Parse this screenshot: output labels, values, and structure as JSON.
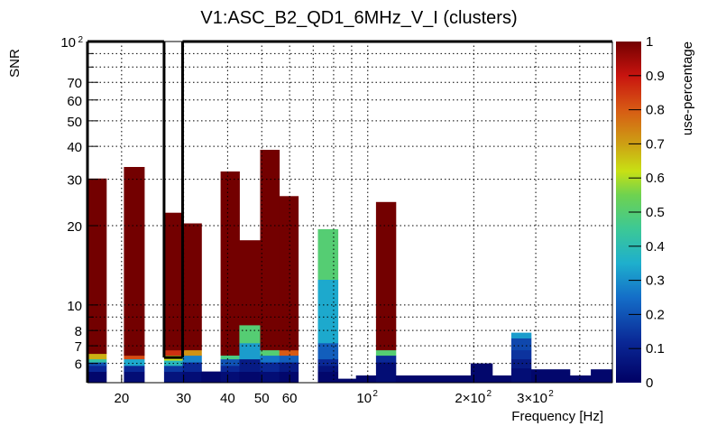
{
  "chart_data": {
    "type": "heatmap",
    "title": "V1:ASC_B2_QD1_6MHz_V_I (clusters)",
    "xlabel": "Frequency [Hz]",
    "ylabel": "SNR",
    "zlabel": "use-percentage",
    "xscale": "log",
    "yscale": "log",
    "xlim": [
      16.0,
      495.0
    ],
    "ylim": [
      5.07,
      100
    ],
    "zlim": [
      0,
      1
    ],
    "grid": true,
    "x_ticks": [
      {
        "value": 20,
        "label": "20"
      },
      {
        "value": 30,
        "label": "30"
      },
      {
        "value": 40,
        "label": "40"
      },
      {
        "value": 50,
        "label": "50"
      },
      {
        "value": 60,
        "label": "60"
      },
      {
        "value": 100,
        "label": "10",
        "sup": "2"
      },
      {
        "value": 200,
        "label": "2×10",
        "sup": "2"
      },
      {
        "value": 300,
        "label": "3×10",
        "sup": "2"
      }
    ],
    "x_minor_grid": [
      70,
      80,
      90,
      400
    ],
    "y_ticks": [
      {
        "value": 6,
        "label": "6"
      },
      {
        "value": 7,
        "label": "7"
      },
      {
        "value": 8,
        "label": "8"
      },
      {
        "value": 10,
        "label": "10"
      },
      {
        "value": 20,
        "label": "20"
      },
      {
        "value": 30,
        "label": "30"
      },
      {
        "value": 40,
        "label": "40"
      },
      {
        "value": 50,
        "label": "50"
      },
      {
        "value": 60,
        "label": "60"
      },
      {
        "value": 70,
        "label": "70"
      },
      {
        "value": 100,
        "label": "10",
        "sup": "2"
      }
    ],
    "y_minor_grid": [
      9,
      80,
      90
    ],
    "z_ticks": [
      "0",
      "0.1",
      "0.2",
      "0.3",
      "0.4",
      "0.5",
      "0.6",
      "0.7",
      "0.8",
      "0.9",
      "1"
    ],
    "highlight_band_hz": [
      26.4,
      29.8
    ],
    "bins": [
      {
        "f0": 16.0,
        "f1": 18.1,
        "segments": [
          [
            5.59,
            0.02
          ],
          [
            5.89,
            0.12
          ],
          [
            6.07,
            0.2
          ],
          [
            6.24,
            0.42
          ],
          [
            6.54,
            0.68
          ],
          [
            30.2,
            1.0
          ]
        ]
      },
      {
        "f0": 20.3,
        "f1": 23.2,
        "segments": [
          [
            5.59,
            0.04
          ],
          [
            5.89,
            0.12
          ],
          [
            6.24,
            0.34
          ],
          [
            6.44,
            0.82
          ],
          [
            33.4,
            1.0
          ]
        ]
      },
      {
        "f0": 26.4,
        "f1": 29.8,
        "segments": [
          [
            5.59,
            0.06
          ],
          [
            5.89,
            0.15
          ],
          [
            6.17,
            0.38
          ],
          [
            6.44,
            0.62
          ],
          [
            6.75,
            0.86
          ],
          [
            22.4,
            1.0
          ]
        ]
      },
      {
        "f0": 29.8,
        "f1": 33.7,
        "segments": [
          [
            5.59,
            0.04
          ],
          [
            6.07,
            0.12
          ],
          [
            6.44,
            0.28
          ],
          [
            6.75,
            0.72
          ],
          [
            20.4,
            1.0
          ]
        ]
      },
      {
        "f0": 33.7,
        "f1": 38.2,
        "segments": [
          [
            5.59,
            0.02
          ]
        ]
      },
      {
        "f0": 38.2,
        "f1": 43.2,
        "segments": [
          [
            5.59,
            0.04
          ],
          [
            5.89,
            0.12
          ],
          [
            6.24,
            0.2
          ],
          [
            6.44,
            0.48
          ],
          [
            32.1,
            1.0
          ]
        ]
      },
      {
        "f0": 43.2,
        "f1": 49.5,
        "segments": [
          [
            5.59,
            0.02
          ],
          [
            6.24,
            0.08
          ],
          [
            7.18,
            0.32
          ],
          [
            8.4,
            0.5
          ],
          [
            17.6,
            1.0
          ]
        ]
      },
      {
        "f0": 49.5,
        "f1": 56.1,
        "segments": [
          [
            5.59,
            0.04
          ],
          [
            6.07,
            0.12
          ],
          [
            6.44,
            0.26
          ],
          [
            6.75,
            0.5
          ],
          [
            38.8,
            1.0
          ]
        ]
      },
      {
        "f0": 56.1,
        "f1": 63.5,
        "segments": [
          [
            5.59,
            0.02
          ],
          [
            6.07,
            0.08
          ],
          [
            6.44,
            0.22
          ],
          [
            6.75,
            0.8
          ],
          [
            25.9,
            1.0
          ]
        ]
      },
      {
        "f0": 72.2,
        "f1": 82.3,
        "segments": [
          [
            5.59,
            0.02
          ],
          [
            5.89,
            0.06
          ],
          [
            6.24,
            0.12
          ],
          [
            7.18,
            0.22
          ],
          [
            12.5,
            0.34
          ],
          [
            19.4,
            0.5
          ]
        ]
      },
      {
        "f0": 82.3,
        "f1": 92.6,
        "segments": [
          [
            5.25,
            0.02
          ]
        ]
      },
      {
        "f0": 92.6,
        "f1": 105.5,
        "segments": [
          [
            5.4,
            0.02
          ]
        ]
      },
      {
        "f0": 105.5,
        "f1": 120.1,
        "segments": [
          [
            6.07,
            0.04
          ],
          [
            6.44,
            0.12
          ],
          [
            6.75,
            0.5
          ],
          [
            24.6,
            1.0
          ]
        ]
      },
      {
        "f0": 120.1,
        "f1": 196.0,
        "segments": [
          [
            5.4,
            0.02
          ]
        ]
      },
      {
        "f0": 196.0,
        "f1": 225.8,
        "segments": [
          [
            6.0,
            0.02
          ]
        ]
      },
      {
        "f0": 225.8,
        "f1": 255.6,
        "segments": [
          [
            5.4,
            0.02
          ]
        ]
      },
      {
        "f0": 255.6,
        "f1": 291.0,
        "segments": [
          [
            5.76,
            0.04
          ],
          [
            6.24,
            0.08
          ],
          [
            6.75,
            0.14
          ],
          [
            7.49,
            0.18
          ],
          [
            7.85,
            0.32
          ]
        ]
      },
      {
        "f0": 291.0,
        "f1": 375.0,
        "segments": [
          [
            5.7,
            0.02
          ]
        ]
      },
      {
        "f0": 375.0,
        "f1": 430.0,
        "segments": [
          [
            5.4,
            0.02
          ]
        ]
      },
      {
        "f0": 430.0,
        "f1": 495.0,
        "segments": [
          [
            5.7,
            0.02
          ]
        ]
      }
    ]
  }
}
